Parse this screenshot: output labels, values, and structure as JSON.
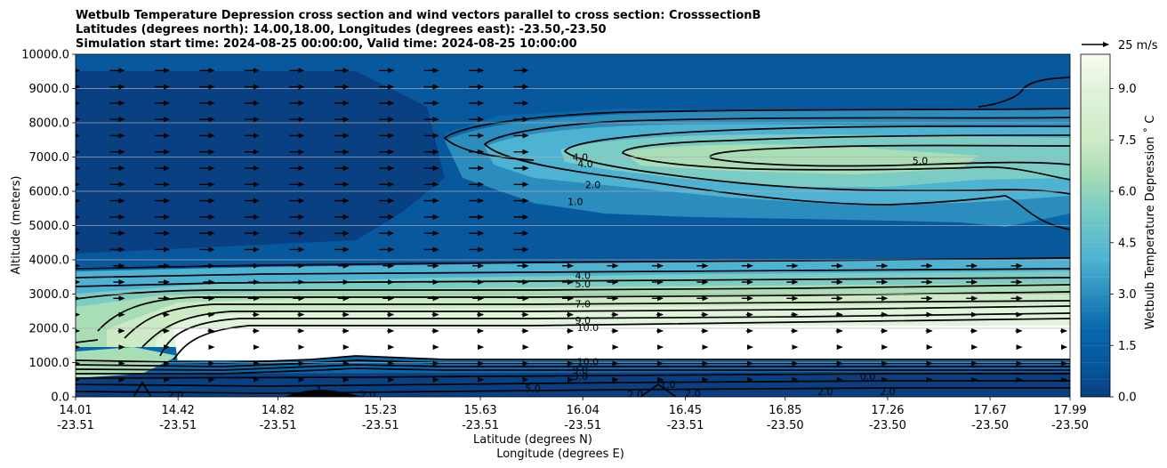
{
  "chart_data": {
    "type": "contour",
    "title_lines": [
      "Wetbulb Temperature Depression cross section and wind vectors parallel to cross section: CrosssectionB",
      "Latitudes (degrees north): 14.00,18.00, Longitudes (degrees east): -23.50,-23.50",
      "Simulation start time: 2024-08-25 00:00:00, Valid time: 2024-08-25 10:00:00"
    ],
    "ylabel": "Altitude (meters)",
    "xlabel_lines": [
      "Latitude (degrees N)",
      "Longitude (degrees E)"
    ],
    "ylim": [
      0,
      10000
    ],
    "y_ticks": [
      {
        "value": 0,
        "label": "0.0"
      },
      {
        "value": 1000,
        "label": "1000.0"
      },
      {
        "value": 2000,
        "label": "2000.0"
      },
      {
        "value": 3000,
        "label": "3000.0"
      },
      {
        "value": 4000,
        "label": "4000.0"
      },
      {
        "value": 5000,
        "label": "5000.0"
      },
      {
        "value": 6000,
        "label": "6000.0"
      },
      {
        "value": 7000,
        "label": "7000.0"
      },
      {
        "value": 8000,
        "label": "8000.0"
      },
      {
        "value": 9000,
        "label": "9000.0"
      },
      {
        "value": 10000,
        "label": "10000.0"
      }
    ],
    "xlim": [
      14.01,
      17.99
    ],
    "x_ticks": [
      {
        "value": 14.01,
        "lat": "14.01",
        "lon": "-23.51"
      },
      {
        "value": 14.42,
        "lat": "14.42",
        "lon": "-23.51"
      },
      {
        "value": 14.82,
        "lat": "14.82",
        "lon": "-23.51"
      },
      {
        "value": 15.23,
        "lat": "15.23",
        "lon": "-23.51"
      },
      {
        "value": 15.63,
        "lat": "15.63",
        "lon": "-23.51"
      },
      {
        "value": 16.04,
        "lat": "16.04",
        "lon": "-23.51"
      },
      {
        "value": 16.45,
        "lat": "16.45",
        "lon": "-23.51"
      },
      {
        "value": 16.85,
        "lat": "16.85",
        "lon": "-23.50"
      },
      {
        "value": 17.26,
        "lat": "17.26",
        "lon": "-23.50"
      },
      {
        "value": 17.67,
        "lat": "17.67",
        "lon": "-23.50"
      },
      {
        "value": 17.99,
        "lat": "17.99",
        "lon": "-23.50"
      }
    ],
    "grid": "horizontal",
    "colorbar": {
      "label": "Wetbulb Temperature Depression $^\\circ$C",
      "min": 0,
      "max": 10,
      "levels": 20,
      "ticks": [
        {
          "value": 0,
          "label": "0.0"
        },
        {
          "value": 1.5,
          "label": "1.5"
        },
        {
          "value": 3,
          "label": "3.0"
        },
        {
          "value": 4.5,
          "label": "4.5"
        },
        {
          "value": 6,
          "label": "6.0"
        },
        {
          "value": 7.5,
          "label": "7.5"
        },
        {
          "value": 9,
          "label": "9.0"
        }
      ],
      "colors": [
        "#084081",
        "#08589e",
        "#0868ac",
        "#2b8cbe",
        "#4eb3d3",
        "#7bccc4",
        "#a8ddb5",
        "#ccebc5",
        "#e0f3db",
        "#f7fcf0"
      ]
    },
    "quiver_key": {
      "label": "25 m/s",
      "speed": 25
    },
    "contour_labels": [
      {
        "text": "4.0",
        "x": 16.03,
        "y": 7000
      },
      {
        "text": "4.0",
        "x": 16.05,
        "y": 6800
      },
      {
        "text": "2.0",
        "x": 16.08,
        "y": 6200
      },
      {
        "text": "1.0",
        "x": 16.01,
        "y": 5700
      },
      {
        "text": "5.0",
        "x": 17.39,
        "y": 6900
      },
      {
        "text": "4.0",
        "x": 16.04,
        "y": 3550
      },
      {
        "text": "5.0",
        "x": 16.04,
        "y": 3300
      },
      {
        "text": "7.0",
        "x": 16.04,
        "y": 2720
      },
      {
        "text": "9.0",
        "x": 16.04,
        "y": 2240
      },
      {
        "text": "10.0",
        "x": 16.06,
        "y": 2030
      },
      {
        "text": "10.0",
        "x": 16.06,
        "y": 1020
      },
      {
        "text": "9.0",
        "x": 16.03,
        "y": 780
      },
      {
        "text": "3.0",
        "x": 16.03,
        "y": 600
      },
      {
        "text": "1.0",
        "x": 16.38,
        "y": 360
      },
      {
        "text": "2.0",
        "x": 16.48,
        "y": 100
      },
      {
        "text": "2.0",
        "x": 16.25,
        "y": 80
      },
      {
        "text": "0.0",
        "x": 17.18,
        "y": 600
      },
      {
        "text": "2.0",
        "x": 17.01,
        "y": 150
      },
      {
        "text": "2.0",
        "x": 17.26,
        "y": 150
      },
      {
        "text": "2.0",
        "x": 14.41,
        "y": 60
      },
      {
        "text": "2.0",
        "x": 15.18,
        "y": 60
      },
      {
        "text": "5.0",
        "x": 15.84,
        "y": 250
      },
      {
        "text": "3",
        "x": 14.98,
        "y": 250
      }
    ]
  }
}
